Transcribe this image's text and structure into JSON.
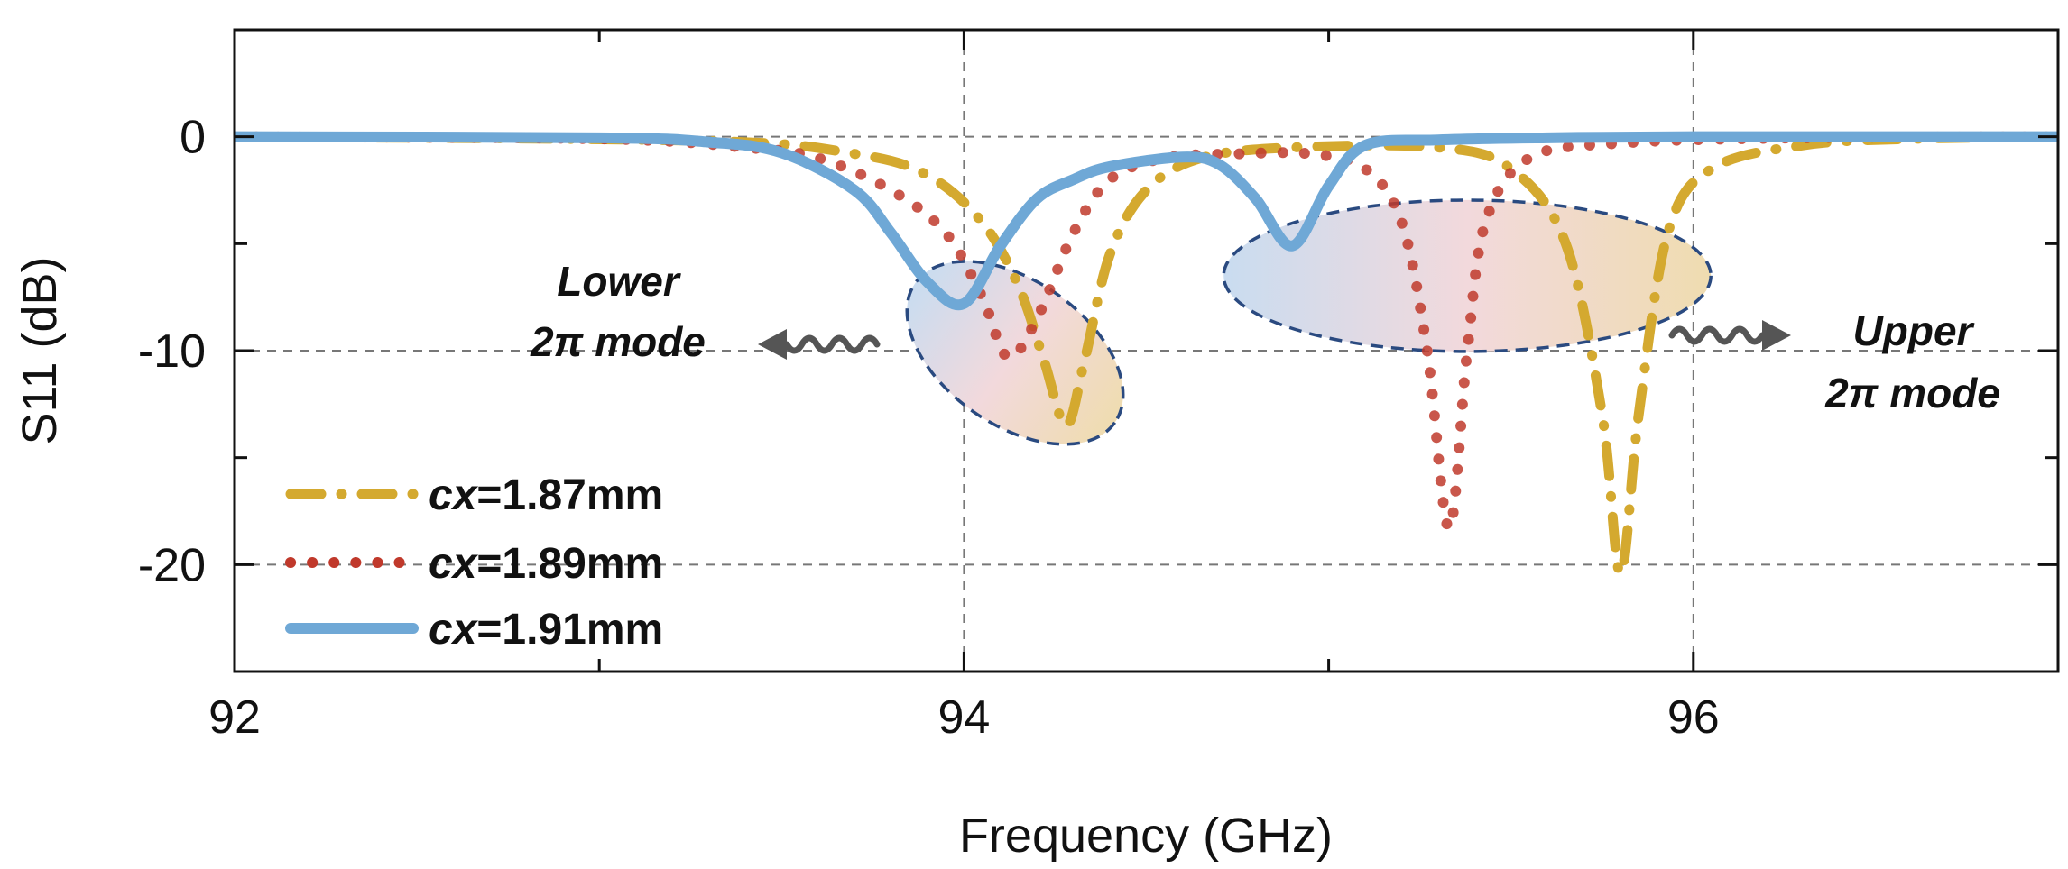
{
  "chart_data": {
    "type": "line",
    "title": "",
    "xlabel": "Frequency (GHz)",
    "ylabel": "S11 (dB)",
    "xlim": [
      92,
      97
    ],
    "ylim": [
      -25,
      5
    ],
    "xticks": [
      92,
      94,
      96
    ],
    "xtick_labels": [
      "92",
      "94",
      "96"
    ],
    "yticks": [
      0,
      -10,
      -20
    ],
    "ytick_labels": [
      "0",
      "-10",
      "-20"
    ],
    "grid": true,
    "legend_position": "bottom-left",
    "series": [
      {
        "name_prefix": "cx",
        "name_value": "=1.87mm",
        "color": "#d4a92f",
        "style": "dash-dot",
        "x": [
          92,
          93.3,
          93.7,
          93.9,
          94.05,
          94.15,
          94.22,
          94.28,
          94.33,
          94.4,
          94.5,
          94.65,
          94.9,
          95.3,
          95.5,
          95.65,
          95.75,
          95.8,
          95.85,
          95.93,
          96.05,
          96.3,
          96.6,
          97
        ],
        "y": [
          0,
          -0.2,
          -0.8,
          -1.8,
          -4,
          -7,
          -10.5,
          -13.5,
          -10.5,
          -5.5,
          -2.5,
          -1,
          -0.5,
          -0.5,
          -1.5,
          -5,
          -13,
          -20.4,
          -13,
          -4.5,
          -1.5,
          -0.4,
          -0.1,
          0
        ]
      },
      {
        "name_prefix": "cx",
        "name_value": "=1.89mm",
        "color": "#c0392b",
        "style": "dot",
        "x": [
          92,
          93,
          93.4,
          93.6,
          93.8,
          93.95,
          94.05,
          94.12,
          94.2,
          94.3,
          94.4,
          94.55,
          94.75,
          94.95,
          95.1,
          95.2,
          95.27,
          95.33,
          95.38,
          95.43,
          95.55,
          95.8,
          96.3,
          97
        ],
        "y": [
          0,
          -0.1,
          -0.5,
          -1,
          -2.5,
          -4.5,
          -7.5,
          -10.3,
          -8.5,
          -4.5,
          -2,
          -1,
          -0.8,
          -0.8,
          -1.5,
          -4,
          -10,
          -18.3,
          -10,
          -4,
          -1,
          -0.3,
          -0.05,
          0
        ]
      },
      {
        "name_prefix": "cx",
        "name_value": "=1.91mm",
        "color": "#6fa8d6",
        "style": "solid",
        "x": [
          92,
          93,
          93.3,
          93.5,
          93.7,
          93.8,
          93.9,
          94.0,
          94.1,
          94.2,
          94.3,
          94.4,
          94.6,
          94.7,
          94.8,
          94.9,
          95.0,
          95.1,
          95.3,
          95.6,
          96,
          97
        ],
        "y": [
          0,
          -0.05,
          -0.25,
          -0.75,
          -2.5,
          -4.5,
          -6.8,
          -7.8,
          -5.1,
          -2.9,
          -2,
          -1.4,
          -0.95,
          -1.3,
          -2.9,
          -5.1,
          -2.3,
          -0.4,
          -0.15,
          -0.05,
          0,
          0
        ]
      }
    ],
    "annotations": [
      {
        "lines": [
          "Lower",
          "2π mode"
        ],
        "region_center": [
          94.14,
          -10.1
        ],
        "arrow": "left"
      },
      {
        "lines": [
          "Upper",
          "2π mode"
        ],
        "region_center": [
          95.38,
          -6.5
        ],
        "arrow": "right"
      }
    ]
  }
}
